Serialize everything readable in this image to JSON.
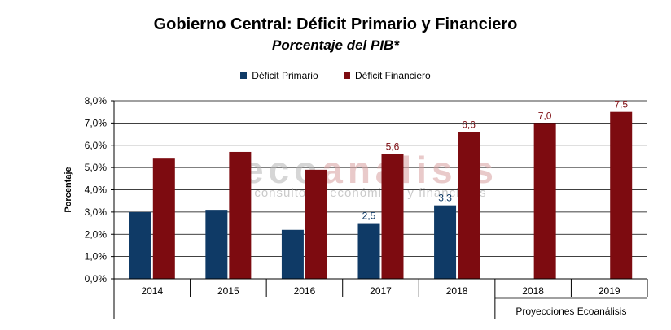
{
  "title": "Gobierno Central: Déficit Primario y Financiero",
  "subtitle": "Porcentaje del PIB*",
  "watermark": {
    "brand_left": "eco",
    "brand_right": "análisis",
    "tagline": "consultores económicos y financieros"
  },
  "colors": {
    "primario": "#0f3a66",
    "financiero": "#7d0b10",
    "watermark_grey": "#b5b5b5",
    "watermark_red": "#d8a0a0"
  },
  "chart_data": {
    "type": "bar",
    "categories": [
      "2014",
      "2015",
      "2016",
      "2017",
      "2018",
      "2018",
      "2019"
    ],
    "group_label": "Proyecciones Ecoanálisis",
    "series": [
      {
        "name": "Déficit Primario",
        "values": [
          3.0,
          3.1,
          2.2,
          2.5,
          3.3,
          null,
          null
        ],
        "labels": [
          "",
          "",
          "",
          "2,5",
          "3,3",
          "",
          ""
        ]
      },
      {
        "name": "Déficit Financiero",
        "values": [
          5.4,
          5.7,
          4.9,
          5.6,
          6.6,
          7.0,
          7.5
        ],
        "labels": [
          "",
          "",
          "",
          "5,6",
          "6,6",
          "7,0",
          "7,5"
        ]
      }
    ],
    "ylabel": "Porcentaje",
    "ylim": [
      0,
      8
    ],
    "yticks": [
      "0,0%",
      "1,0%",
      "2,0%",
      "3,0%",
      "4,0%",
      "5,0%",
      "6,0%",
      "7,0%",
      "8,0%"
    ],
    "grid": true,
    "legend_position": "top"
  }
}
